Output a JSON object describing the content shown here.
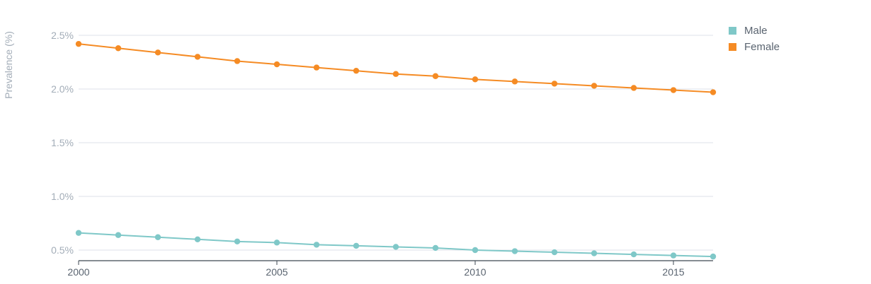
{
  "chart_data": {
    "type": "line",
    "title": "",
    "xlabel": "",
    "ylabel": "Prevalence (%)",
    "x": [
      2000,
      2001,
      2002,
      2003,
      2004,
      2005,
      2006,
      2007,
      2008,
      2009,
      2010,
      2011,
      2012,
      2013,
      2014,
      2015,
      2016
    ],
    "xticks": [
      "2000",
      "2005",
      "2010",
      "2015"
    ],
    "yticks": [
      "0.5%",
      "1.0%",
      "1.5%",
      "2.0%",
      "2.5%"
    ],
    "ylim": [
      0.4,
      2.6
    ],
    "grid": true,
    "legend_position": "top-right",
    "series": [
      {
        "name": "Male",
        "color": "#7fc8c8",
        "values": [
          0.66,
          0.64,
          0.62,
          0.6,
          0.58,
          0.57,
          0.55,
          0.54,
          0.53,
          0.52,
          0.5,
          0.49,
          0.48,
          0.47,
          0.46,
          0.45,
          0.44
        ]
      },
      {
        "name": "Female",
        "color": "#f58b24",
        "values": [
          2.42,
          2.38,
          2.34,
          2.3,
          2.26,
          2.23,
          2.2,
          2.17,
          2.14,
          2.12,
          2.09,
          2.07,
          2.05,
          2.03,
          2.01,
          1.99,
          1.97
        ]
      }
    ]
  }
}
